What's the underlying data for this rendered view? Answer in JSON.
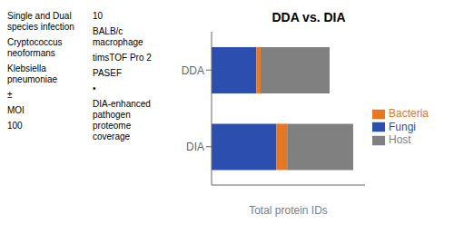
{
  "chart_data": {
    "type": "bar",
    "orientation": "horizontal",
    "stacked": true,
    "title": "DDA vs. DIA",
    "xlabel": "Total protein IDs",
    "categories": [
      "DDA",
      "DIA"
    ],
    "series": [
      {
        "name": "Fungi",
        "color": "#2B4EAF",
        "values": [
          3.8,
          5.5
        ]
      },
      {
        "name": "Bacteria",
        "color": "#E87722",
        "values": [
          0.35,
          0.9
        ]
      },
      {
        "name": "Host",
        "color": "#808080",
        "values": [
          5.85,
          5.6
        ]
      }
    ],
    "xlim": [
      0,
      13
    ],
    "tick_labels": "y",
    "legend": "right",
    "annotations": [
      "Single and Dual\nspecies infection",
      "Cryptococcus\nneoformans",
      "Klebsiella\npneumoniae",
      "±",
      "MOI",
      "100",
      "10",
      "BALB/c\nmacrophage",
      "timsTOF Pro 2",
      "PASEF",
      "•",
      "DIA-enhanced\npathogen\nproteome coverage"
    ]
  }
}
